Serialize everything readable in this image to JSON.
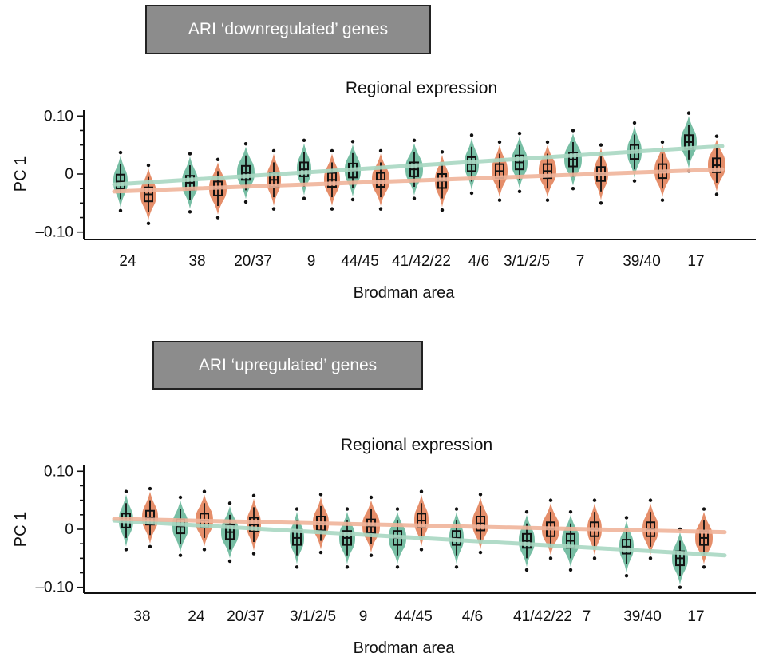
{
  "panel_labels": [
    "ARI ‘downregulated’ genes",
    "ARI ‘upregulated’ genes"
  ],
  "colors": {
    "green": "#5fb394",
    "orange": "#e07a50",
    "green_trend": "#a9d7c2",
    "orange_trend": "#f0b49a",
    "box": "#111111"
  },
  "chart_data": [
    {
      "type": "violin",
      "panel_label": "ARI ‘downregulated’ genes",
      "title": "Regional expression",
      "xlabel": "Brodman area",
      "ylabel": "PC 1",
      "ylim": [
        -0.11,
        0.11
      ],
      "yticks": [
        0.1,
        0,
        -0.1
      ],
      "ytick_labels": [
        "0.10",
        "0",
        "–0.10"
      ],
      "categories": [
        "24",
        "38",
        "20/37",
        "9",
        "44/45",
        "41/42/22",
        "4/6",
        "3/1/2/5",
        "7",
        "39/40",
        "17"
      ],
      "series": [
        {
          "name": "green",
          "medians": [
            -0.013,
            -0.015,
            0.002,
            0.008,
            0.006,
            0.008,
            0.017,
            0.02,
            0.025,
            0.038,
            0.055
          ]
        },
        {
          "name": "orange",
          "medians": [
            -0.035,
            -0.025,
            -0.01,
            -0.01,
            -0.01,
            -0.012,
            0.005,
            0.005,
            0.0,
            0.005,
            0.015
          ]
        }
      ],
      "trend": {
        "green": [
          -0.018,
          0.048
        ],
        "orange": [
          -0.03,
          0.008
        ]
      }
    },
    {
      "type": "violin",
      "panel_label": "ARI ‘upregulated’ genes",
      "title": "Regional expression",
      "xlabel": "Brodman area",
      "ylabel": "PC 1",
      "ylim": [
        -0.11,
        0.11
      ],
      "yticks": [
        0.1,
        0,
        -0.1
      ],
      "ytick_labels": [
        "0.10",
        "0",
        "–0.10"
      ],
      "categories": [
        "38",
        "24",
        "20/37",
        "3/1/2/5",
        "9",
        "44/45",
        "4/6",
        "41/42/22",
        "7",
        "39/40",
        "17"
      ],
      "series": [
        {
          "name": "green",
          "medians": [
            0.015,
            0.005,
            -0.005,
            -0.015,
            -0.015,
            -0.015,
            -0.015,
            -0.02,
            -0.02,
            -0.03,
            -0.05
          ]
        },
        {
          "name": "orange",
          "medians": [
            0.02,
            0.015,
            0.008,
            0.01,
            0.005,
            0.015,
            0.01,
            0.0,
            0.0,
            0.0,
            -0.015
          ]
        }
      ],
      "trend": {
        "green": [
          0.015,
          -0.045
        ],
        "orange": [
          0.018,
          -0.005
        ]
      }
    }
  ]
}
